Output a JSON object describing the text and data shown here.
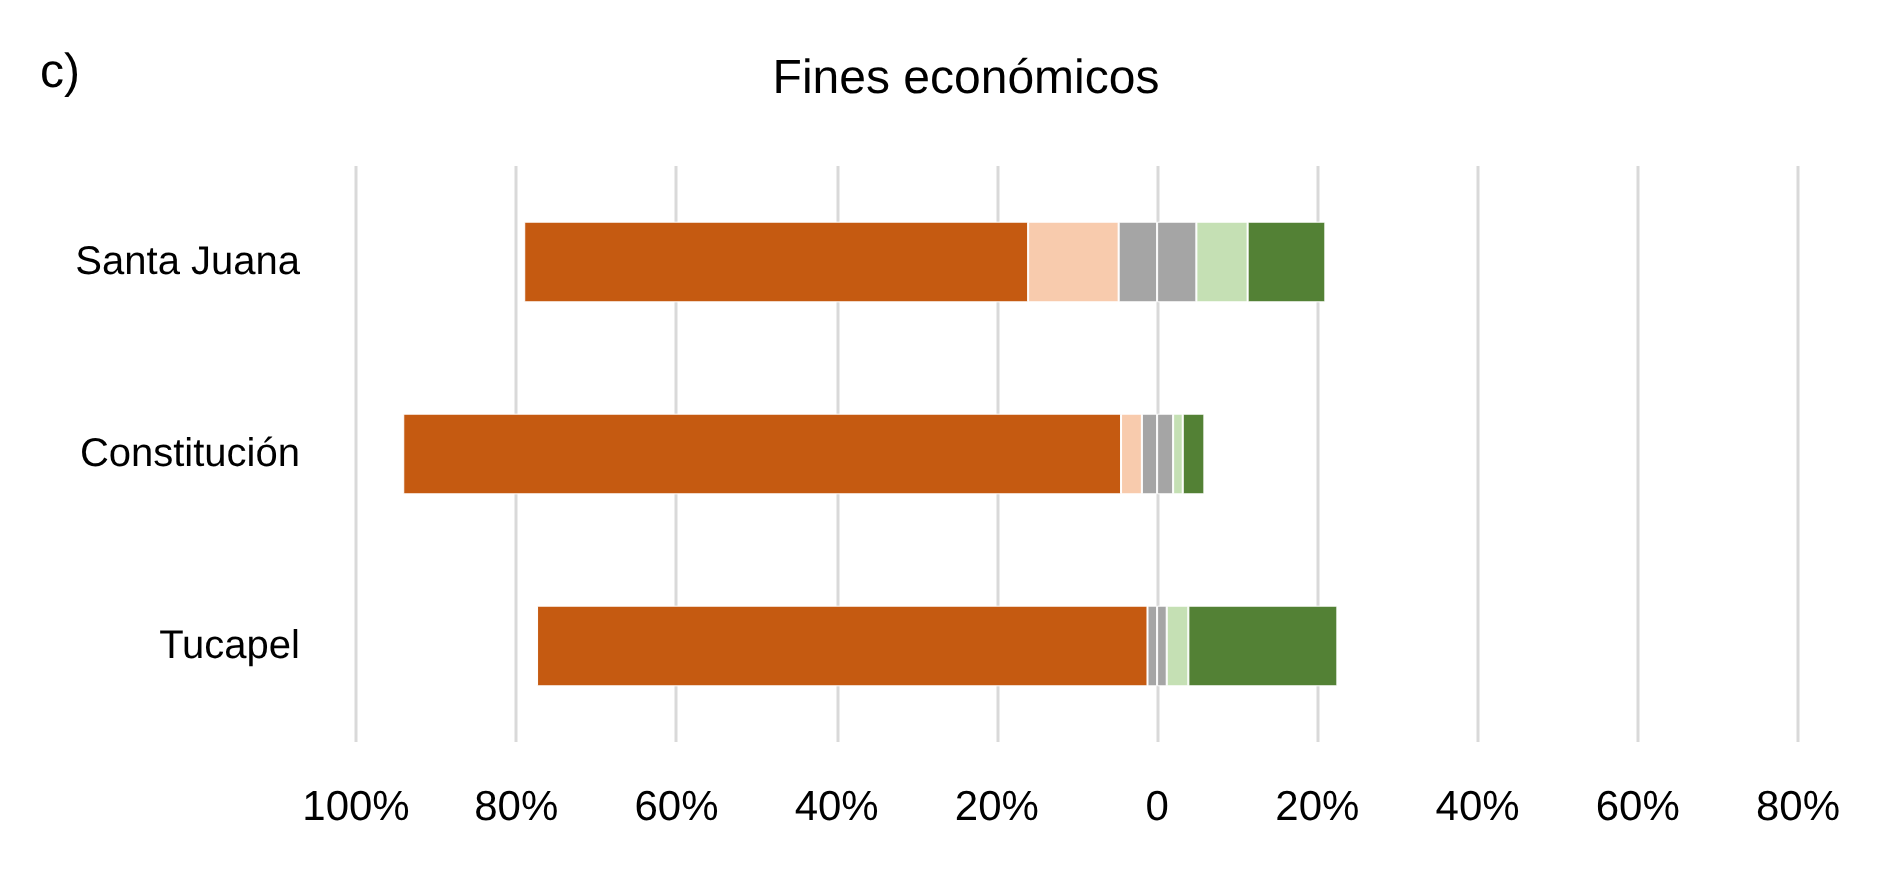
{
  "chart_data": {
    "type": "bar",
    "title": "Fines económicos",
    "annotations": [
      "c)"
    ],
    "orientation": "horizontal",
    "stacked": true,
    "categories": [
      "Santa Juana",
      "Constitución",
      "Tucapel"
    ],
    "series": [
      {
        "color": "#a5a5a5",
        "values": [
          -4.8,
          -1.9,
          -1.2
        ]
      },
      {
        "color": "#a5a5a5",
        "values": [
          4.9,
          2.0,
          1.2
        ]
      },
      {
        "color": "#f8cbad",
        "values": [
          -11.3,
          -2.6,
          null
        ]
      },
      {
        "color": "#c5e0b4",
        "values": [
          6.4,
          1.2,
          2.7
        ]
      },
      {
        "color": "#c55a11",
        "values": [
          -62.9,
          -89.6,
          -76.2
        ]
      },
      {
        "color": "#538135",
        "values": [
          9.7,
          2.7,
          18.6
        ]
      }
    ],
    "xlim": [
      -100,
      80
    ],
    "xticks": [
      {
        "value": -100,
        "label": "100%"
      },
      {
        "value": -80,
        "label": "80%"
      },
      {
        "value": -60,
        "label": "60%"
      },
      {
        "value": -40,
        "label": "40%"
      },
      {
        "value": -20,
        "label": "20%"
      },
      0,
      {
        "value": 20,
        "label": "20%"
      },
      {
        "value": 40,
        "label": "40%"
      },
      {
        "value": 60,
        "label": "60%"
      },
      {
        "value": 80,
        "label": "80%"
      }
    ],
    "grid": "x"
  }
}
